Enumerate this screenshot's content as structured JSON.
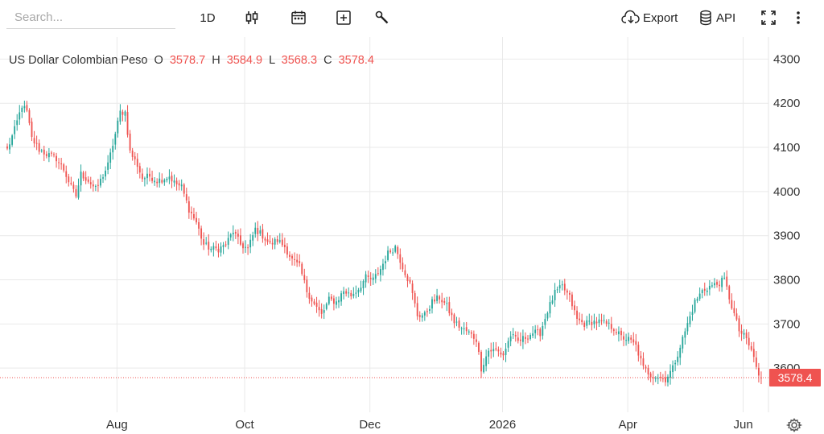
{
  "toolbar": {
    "search_placeholder": "Search...",
    "interval": "1D",
    "export_label": "Export",
    "api_label": "API",
    "icons": [
      "candlestick-icon",
      "calendar-icon",
      "add-indicator-icon",
      "wrench-icon",
      "cloud-download-icon",
      "database-icon",
      "fullscreen-icon",
      "more-vert-icon",
      "settings-icon"
    ]
  },
  "legend": {
    "symbol": "US Dollar Colombian Peso",
    "o_label": "O",
    "o_value": "3578.7",
    "h_label": "H",
    "h_value": "3584.9",
    "l_label": "L",
    "l_value": "3568.3",
    "c_label": "C",
    "c_value": "3578.4"
  },
  "colors": {
    "up": "#26a69a",
    "down": "#ef5350",
    "grid": "#e9e9e9",
    "last_price_bg": "#ef5350"
  },
  "chart_data": {
    "type": "candlestick",
    "title": "US Dollar Colombian Peso",
    "ylim": [
      3500,
      4350
    ],
    "y_ticks": [
      3600,
      3700,
      3800,
      3900,
      4000,
      4100,
      4200,
      4300
    ],
    "x_ticks": [
      "Aug",
      "Oct",
      "Dec",
      "2026",
      "Apr",
      "Jun"
    ],
    "grid": true,
    "last_price": 3578.4,
    "last_price_label": "3578.4",
    "anchors": [
      [
        0,
        4095
      ],
      [
        3,
        4140
      ],
      [
        6,
        4195
      ],
      [
        8,
        4180
      ],
      [
        10,
        4120
      ],
      [
        13,
        4095
      ],
      [
        16,
        4085
      ],
      [
        20,
        4075
      ],
      [
        23,
        4050
      ],
      [
        26,
        4010
      ],
      [
        28,
        3990
      ],
      [
        30,
        4040
      ],
      [
        33,
        4025
      ],
      [
        36,
        4005
      ],
      [
        38,
        4025
      ],
      [
        41,
        4060
      ],
      [
        44,
        4130
      ],
      [
        46,
        4180
      ],
      [
        48,
        4180
      ],
      [
        50,
        4090
      ],
      [
        53,
        4060
      ],
      [
        55,
        4030
      ],
      [
        58,
        4035
      ],
      [
        61,
        4025
      ],
      [
        64,
        4030
      ],
      [
        66,
        4035
      ],
      [
        68,
        4020
      ],
      [
        71,
        4010
      ],
      [
        74,
        3960
      ],
      [
        77,
        3930
      ],
      [
        80,
        3880
      ],
      [
        83,
        3870
      ],
      [
        86,
        3870
      ],
      [
        89,
        3880
      ],
      [
        92,
        3910
      ],
      [
        95,
        3880
      ],
      [
        98,
        3870
      ],
      [
        101,
        3915
      ],
      [
        104,
        3900
      ],
      [
        107,
        3880
      ],
      [
        110,
        3890
      ],
      [
        113,
        3875
      ],
      [
        116,
        3845
      ],
      [
        119,
        3830
      ],
      [
        122,
        3775
      ],
      [
        125,
        3745
      ],
      [
        128,
        3720
      ],
      [
        131,
        3755
      ],
      [
        134,
        3750
      ],
      [
        137,
        3775
      ],
      [
        140,
        3765
      ],
      [
        143,
        3780
      ],
      [
        146,
        3805
      ],
      [
        149,
        3800
      ],
      [
        152,
        3825
      ],
      [
        155,
        3860
      ],
      [
        158,
        3875
      ],
      [
        161,
        3830
      ],
      [
        164,
        3790
      ],
      [
        167,
        3720
      ],
      [
        170,
        3720
      ],
      [
        173,
        3750
      ],
      [
        176,
        3760
      ],
      [
        179,
        3740
      ],
      [
        182,
        3705
      ],
      [
        185,
        3690
      ],
      [
        188,
        3680
      ],
      [
        191,
        3665
      ],
      [
        193,
        3600
      ],
      [
        196,
        3640
      ],
      [
        199,
        3640
      ],
      [
        202,
        3630
      ],
      [
        205,
        3675
      ],
      [
        208,
        3660
      ],
      [
        211,
        3670
      ],
      [
        214,
        3680
      ],
      [
        217,
        3680
      ],
      [
        220,
        3730
      ],
      [
        223,
        3770
      ],
      [
        226,
        3785
      ],
      [
        229,
        3760
      ],
      [
        232,
        3710
      ],
      [
        235,
        3700
      ],
      [
        238,
        3705
      ],
      [
        241,
        3705
      ],
      [
        244,
        3700
      ],
      [
        247,
        3690
      ],
      [
        250,
        3670
      ],
      [
        253,
        3665
      ],
      [
        256,
        3650
      ],
      [
        259,
        3600
      ],
      [
        262,
        3585
      ],
      [
        265,
        3580
      ],
      [
        268,
        3575
      ],
      [
        271,
        3600
      ],
      [
        274,
        3650
      ],
      [
        277,
        3700
      ],
      [
        280,
        3750
      ],
      [
        283,
        3775
      ],
      [
        286,
        3785
      ],
      [
        289,
        3790
      ],
      [
        292,
        3800
      ],
      [
        295,
        3740
      ],
      [
        298,
        3685
      ],
      [
        301,
        3665
      ],
      [
        304,
        3625
      ],
      [
        306,
        3580
      ],
      [
        308,
        3578.4
      ]
    ],
    "n_candles": 308
  }
}
